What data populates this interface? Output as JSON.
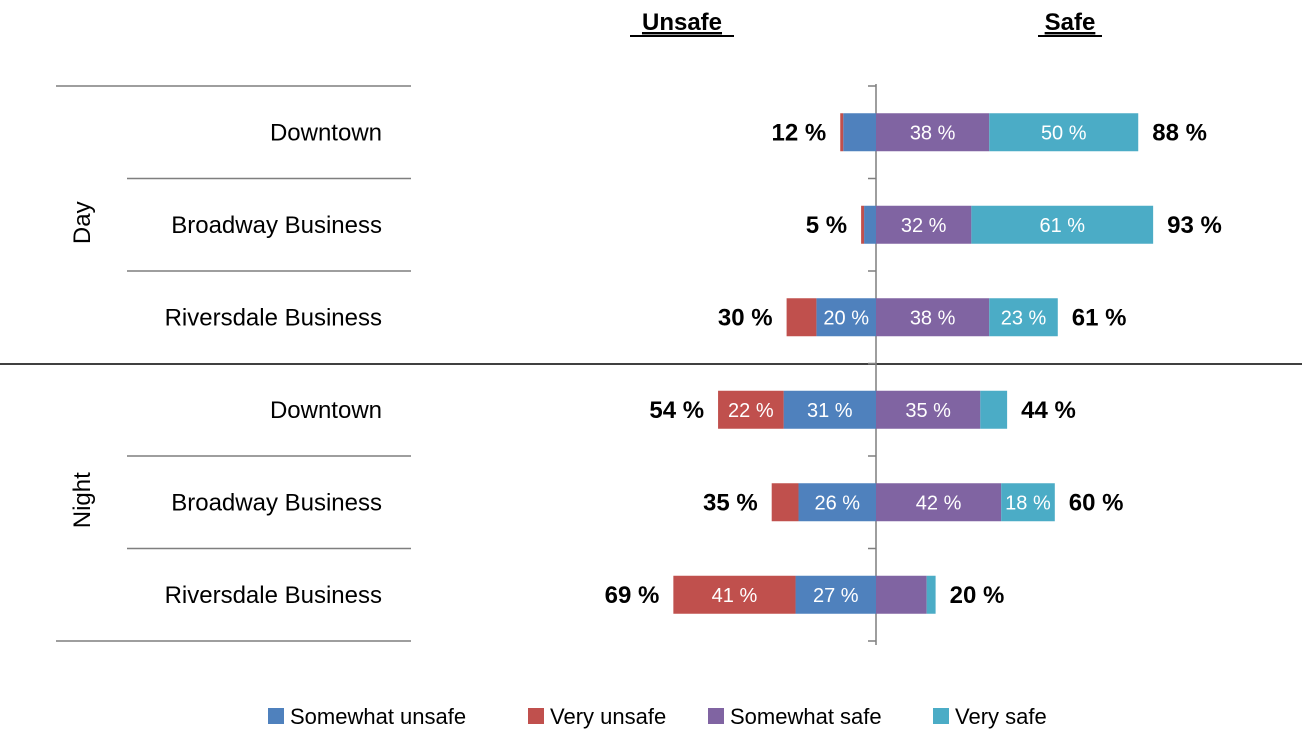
{
  "chart_data": {
    "type": "bar",
    "orientation": "horizontal",
    "stacking": "diverging",
    "header_left": "Unsafe",
    "header_right": "Safe",
    "groups": [
      {
        "label": "Day",
        "rows": [
          {
            "label": "Downtown",
            "unsafe_total_label": "12 %",
            "safe_total_label": "88 %",
            "very_unsafe": 1,
            "somewhat_unsafe": 11,
            "somewhat_safe": 38,
            "very_safe": 50,
            "labels": {
              "very_unsafe": "",
              "somewhat_unsafe": "",
              "somewhat_safe": "38 %",
              "very_safe": "50 %"
            }
          },
          {
            "label": "Broadway Business",
            "unsafe_total_label": "5 %",
            "safe_total_label": "93 %",
            "very_unsafe": 1,
            "somewhat_unsafe": 4,
            "somewhat_safe": 32,
            "very_safe": 61,
            "labels": {
              "very_unsafe": "",
              "somewhat_unsafe": "",
              "somewhat_safe": "32 %",
              "very_safe": "61 %"
            }
          },
          {
            "label": "Riversdale Business",
            "unsafe_total_label": "30 %",
            "safe_total_label": "61 %",
            "very_unsafe": 10,
            "somewhat_unsafe": 20,
            "somewhat_safe": 38,
            "very_safe": 23,
            "labels": {
              "very_unsafe": "",
              "somewhat_unsafe": "20 %",
              "somewhat_safe": "38 %",
              "very_safe": "23 %"
            }
          }
        ]
      },
      {
        "label": "Night",
        "rows": [
          {
            "label": "Downtown",
            "unsafe_total_label": "54 %",
            "safe_total_label": "44 %",
            "very_unsafe": 22,
            "somewhat_unsafe": 31,
            "somewhat_safe": 35,
            "very_safe": 9,
            "labels": {
              "very_unsafe": "22 %",
              "somewhat_unsafe": "31 %",
              "somewhat_safe": "35 %",
              "very_safe": ""
            }
          },
          {
            "label": "Broadway Business",
            "unsafe_total_label": "35 %",
            "safe_total_label": "60 %",
            "very_unsafe": 9,
            "somewhat_unsafe": 26,
            "somewhat_safe": 42,
            "very_safe": 18,
            "labels": {
              "very_unsafe": "",
              "somewhat_unsafe": "26 %",
              "somewhat_safe": "42 %",
              "very_safe": "18 %"
            }
          },
          {
            "label": "Riversdale Business",
            "unsafe_total_label": "69 %",
            "safe_total_label": "20 %",
            "very_unsafe": 41,
            "somewhat_unsafe": 27,
            "somewhat_safe": 17,
            "very_safe": 3,
            "labels": {
              "very_unsafe": "41 %",
              "somewhat_unsafe": "27 %",
              "somewhat_safe": "",
              "very_safe": ""
            }
          }
        ]
      }
    ],
    "series": [
      {
        "key": "somewhat_unsafe",
        "name": "Somewhat unsafe",
        "color": "#4F81BD"
      },
      {
        "key": "very_unsafe",
        "name": "Very unsafe",
        "color": "#C0504D"
      },
      {
        "key": "somewhat_safe",
        "name": "Somewhat safe",
        "color": "#8064A2"
      },
      {
        "key": "very_safe",
        "name": "Very safe",
        "color": "#4BACC6"
      }
    ],
    "legend_position": "bottom",
    "grid": false
  }
}
